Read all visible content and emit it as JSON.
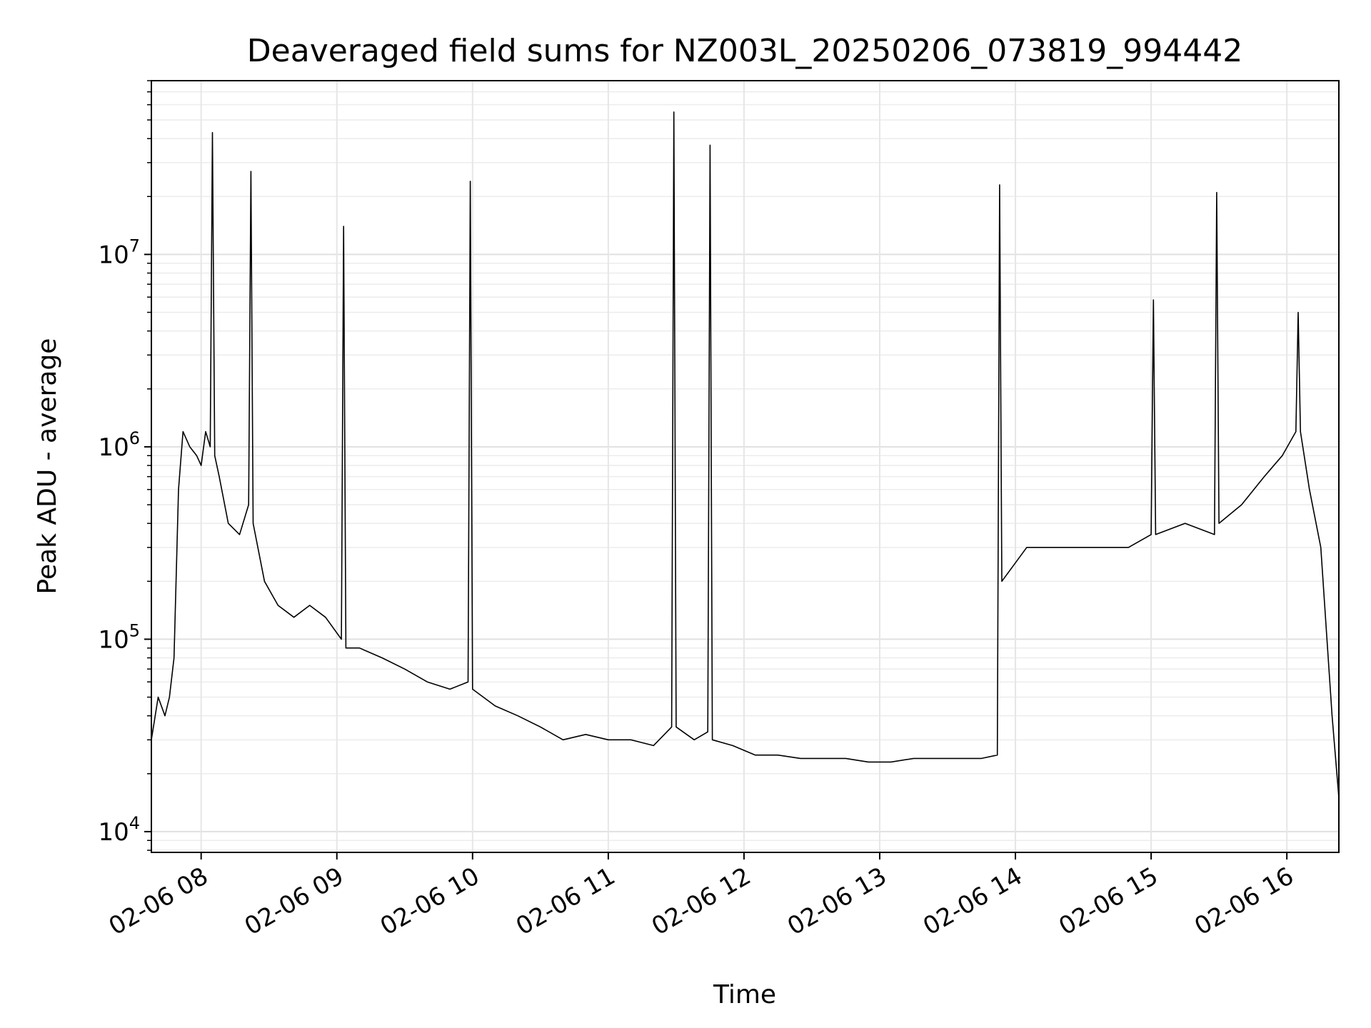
{
  "chart_data": {
    "type": "line",
    "title": "Deaveraged field sums for NZ003L_20250206_073819_994442",
    "xlabel": "Time",
    "ylabel": "Peak ADU - average",
    "yscale": "log",
    "xlim": [
      "2025-02-06 07:38",
      "2025-02-06 16:23"
    ],
    "ylim": [
      7800,
      80000000
    ],
    "grid": true,
    "line_color": "#000000",
    "x_ticks": [
      {
        "t": "2025-02-06 08:00",
        "label": "02-06 08"
      },
      {
        "t": "2025-02-06 09:00",
        "label": "02-06 09"
      },
      {
        "t": "2025-02-06 10:00",
        "label": "02-06 10"
      },
      {
        "t": "2025-02-06 11:00",
        "label": "02-06 11"
      },
      {
        "t": "2025-02-06 12:00",
        "label": "02-06 12"
      },
      {
        "t": "2025-02-06 13:00",
        "label": "02-06 13"
      },
      {
        "t": "2025-02-06 14:00",
        "label": "02-06 14"
      },
      {
        "t": "2025-02-06 15:00",
        "label": "02-06 15"
      },
      {
        "t": "2025-02-06 16:00",
        "label": "02-06 16"
      }
    ],
    "y_ticks": [
      {
        "value": 10000,
        "base": "10",
        "exp": "4"
      },
      {
        "value": 100000,
        "base": "10",
        "exp": "5"
      },
      {
        "value": 1000000,
        "base": "10",
        "exp": "6"
      },
      {
        "value": 10000000,
        "base": "10",
        "exp": "7"
      }
    ],
    "series": [
      {
        "x": [
          "2025-02-06 07:38",
          "2025-02-06 07:41",
          "2025-02-06 07:44",
          "2025-02-06 07:46",
          "2025-02-06 07:48",
          "2025-02-06 07:50",
          "2025-02-06 07:52",
          "2025-02-06 07:55",
          "2025-02-06 07:58",
          "2025-02-06 08:00",
          "2025-02-06 08:02",
          "2025-02-06 08:04",
          "2025-02-06 08:05",
          "2025-02-06 08:06",
          "2025-02-06 08:08",
          "2025-02-06 08:12",
          "2025-02-06 08:17",
          "2025-02-06 08:21",
          "2025-02-06 08:22",
          "2025-02-06 08:23",
          "2025-02-06 08:28",
          "2025-02-06 08:34",
          "2025-02-06 08:41",
          "2025-02-06 08:48",
          "2025-02-06 08:55",
          "2025-02-06 09:02",
          "2025-02-06 09:03",
          "2025-02-06 09:04",
          "2025-02-06 09:10",
          "2025-02-06 09:20",
          "2025-02-06 09:30",
          "2025-02-06 09:40",
          "2025-02-06 09:50",
          "2025-02-06 09:58",
          "2025-02-06 09:59",
          "2025-02-06 10:00",
          "2025-02-06 10:10",
          "2025-02-06 10:20",
          "2025-02-06 10:30",
          "2025-02-06 10:40",
          "2025-02-06 10:50",
          "2025-02-06 11:00",
          "2025-02-06 11:10",
          "2025-02-06 11:20",
          "2025-02-06 11:28",
          "2025-02-06 11:29",
          "2025-02-06 11:30",
          "2025-02-06 11:38",
          "2025-02-06 11:44",
          "2025-02-06 11:45",
          "2025-02-06 11:46",
          "2025-02-06 11:55",
          "2025-02-06 12:05",
          "2025-02-06 12:15",
          "2025-02-06 12:25",
          "2025-02-06 12:35",
          "2025-02-06 12:45",
          "2025-02-06 12:55",
          "2025-02-06 13:05",
          "2025-02-06 13:15",
          "2025-02-06 13:25",
          "2025-02-06 13:35",
          "2025-02-06 13:45",
          "2025-02-06 13:52",
          "2025-02-06 13:53",
          "2025-02-06 13:54",
          "2025-02-06 14:05",
          "2025-02-06 14:20",
          "2025-02-06 14:35",
          "2025-02-06 14:50",
          "2025-02-06 15:00",
          "2025-02-06 15:01",
          "2025-02-06 15:02",
          "2025-02-06 15:15",
          "2025-02-06 15:28",
          "2025-02-06 15:29",
          "2025-02-06 15:30",
          "2025-02-06 15:40",
          "2025-02-06 15:50",
          "2025-02-06 15:58",
          "2025-02-06 16:04",
          "2025-02-06 16:05",
          "2025-02-06 16:06",
          "2025-02-06 16:10",
          "2025-02-06 16:15",
          "2025-02-06 16:20",
          "2025-02-06 16:23"
        ],
        "y": [
          30000,
          50000,
          40000,
          50000,
          80000,
          600000,
          1200000,
          1000000,
          900000,
          800000,
          1200000,
          1000000,
          43000000,
          900000,
          700000,
          400000,
          350000,
          500000,
          27000000,
          400000,
          200000,
          150000,
          130000,
          150000,
          130000,
          100000,
          14000000,
          90000,
          90000,
          80000,
          70000,
          60000,
          55000,
          60000,
          24000000,
          55000,
          45000,
          40000,
          35000,
          30000,
          32000,
          30000,
          30000,
          28000,
          35000,
          55000000,
          35000,
          30000,
          33000,
          37000000,
          30000,
          28000,
          25000,
          25000,
          24000,
          24000,
          24000,
          23000,
          23000,
          24000,
          24000,
          24000,
          24000,
          25000,
          23000000,
          200000,
          300000,
          300000,
          300000,
          300000,
          350000,
          5800000,
          350000,
          400000,
          350000,
          21000000,
          400000,
          500000,
          700000,
          900000,
          1200000,
          5000000,
          1200000,
          600000,
          300000,
          40000,
          15000
        ]
      }
    ]
  }
}
